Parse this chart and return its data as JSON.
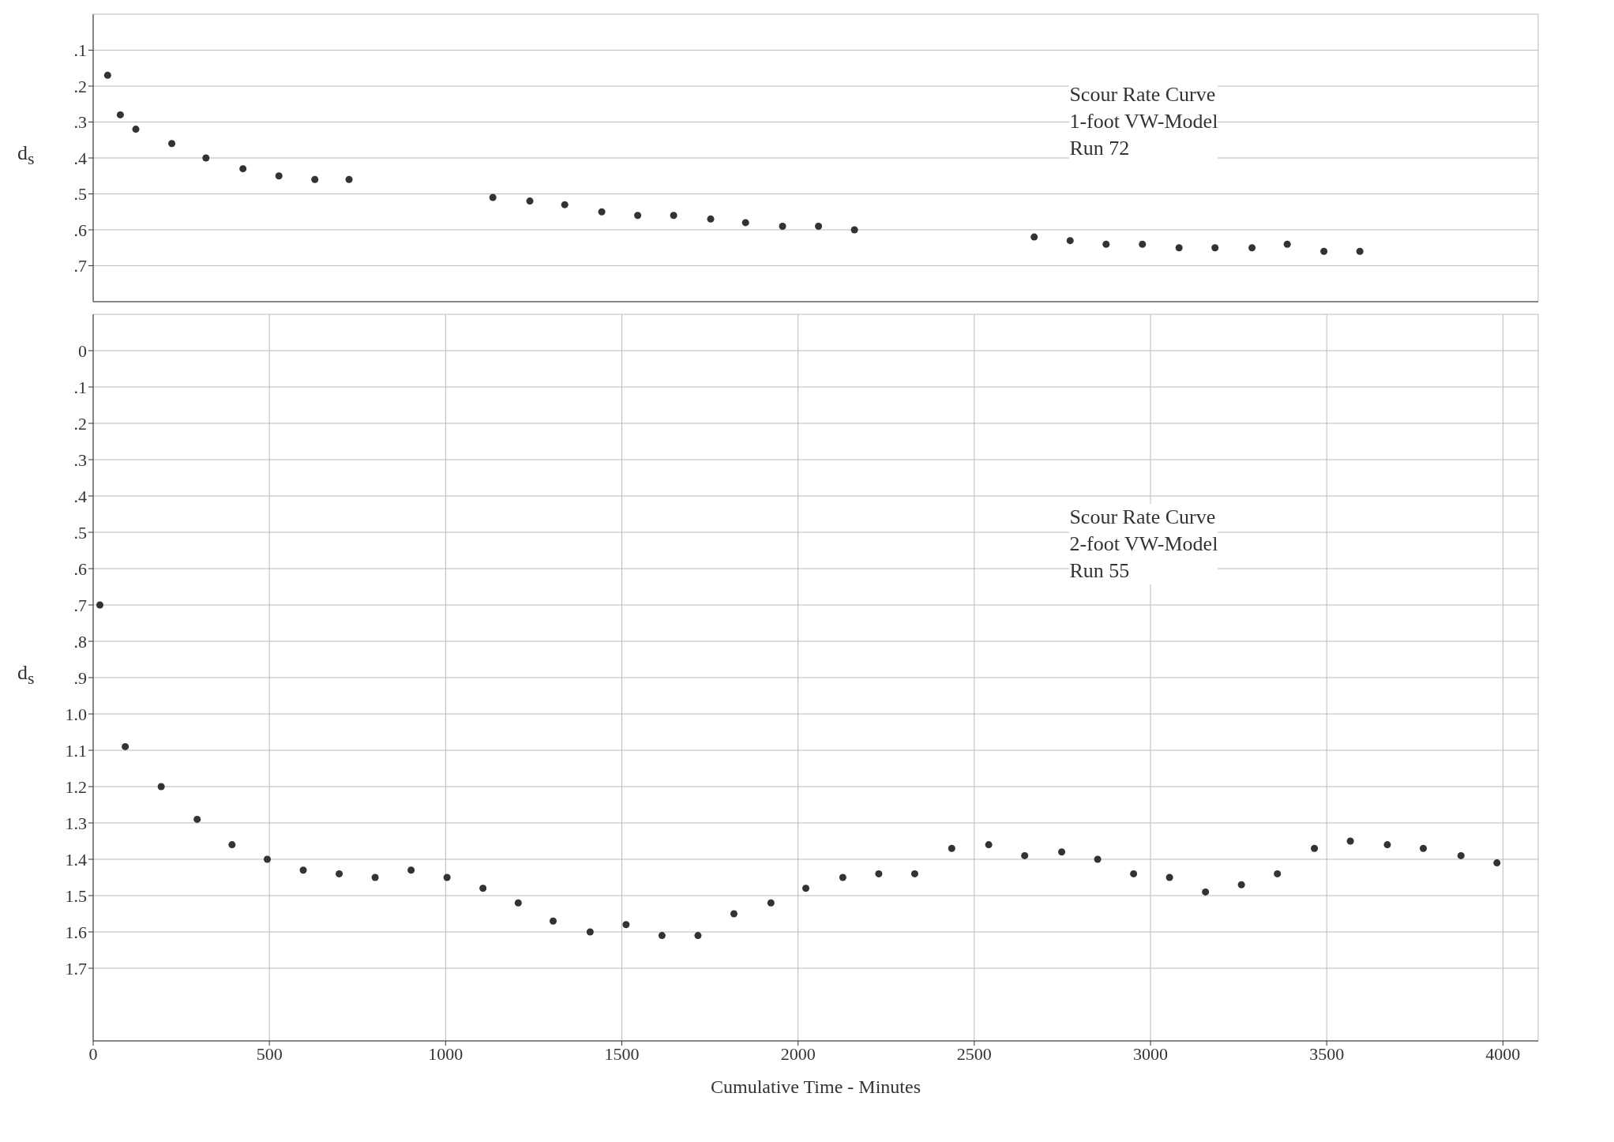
{
  "chart_data": [
    {
      "type": "scatter",
      "ylabel": "d$_{s}$",
      "annotations": [
        "Scour Rate Curve\n1-foot VW-Model\nRun 72"
      ],
      "series": [
        {
          "color": "#333333",
          "x": [
            41,
            77,
            121,
            223,
            320,
            425,
            527,
            629,
            726,
            1134,
            1239,
            1338,
            1443,
            1545,
            1647,
            1752,
            1851,
            1956,
            2058,
            2160,
            2670,
            2772,
            2874,
            2977,
            3081,
            3183,
            3288,
            3388,
            3492,
            3594
          ],
          "values": [
            0.17,
            0.28,
            0.32,
            0.36,
            0.4,
            0.43,
            0.45,
            0.46,
            0.46,
            0.51,
            0.52,
            0.53,
            0.55,
            0.56,
            0.56,
            0.57,
            0.58,
            0.59,
            0.59,
            0.6,
            0.62,
            0.63,
            0.64,
            0.64,
            0.65,
            0.65,
            0.65,
            0.64,
            0.66,
            0.66
          ]
        }
      ],
      "xlim": [
        0,
        4100
      ],
      "xticks": [
        0,
        500,
        1000,
        1500,
        2000,
        2500,
        3000,
        3500,
        4000
      ],
      "ylim": [
        0.8,
        0.0
      ],
      "yticks": [
        {
          "value": 0.1,
          "label": ".1"
        },
        {
          "value": 0.2,
          "label": ".2"
        },
        {
          "value": 0.3,
          "label": ".3"
        },
        {
          "value": 0.4,
          "label": ".4"
        },
        {
          "value": 0.5,
          "label": ".5"
        },
        {
          "value": 0.6,
          "label": ".6"
        },
        {
          "value": 0.7,
          "label": ".7"
        }
      ],
      "tick_labels": "y",
      "grid": true,
      "marker": "circle",
      "legend": false
    },
    {
      "type": "scatter",
      "ylabel": "d$_{s}$",
      "xlabel": "Cumulative Time - Minutes",
      "annotations": [
        "Scour Rate Curve\n2-foot VW-Model\nRun 55"
      ],
      "series": [
        {
          "color": "#333333",
          "x": [
            19,
            91,
            193,
            295,
            394,
            494,
            596,
            698,
            800,
            902,
            1004,
            1106,
            1206,
            1305,
            1410,
            1512,
            1614,
            1716,
            1818,
            1923,
            2022,
            2127,
            2229,
            2331,
            2436,
            2541,
            2643,
            2748,
            2850,
            2952,
            3054,
            3156,
            3258,
            3360,
            3465,
            3567,
            3672,
            3774,
            3881,
            3983
          ],
          "values": [
            0.7,
            1.09,
            1.2,
            1.29,
            1.36,
            1.4,
            1.43,
            1.44,
            1.45,
            1.43,
            1.45,
            1.48,
            1.52,
            1.57,
            1.6,
            1.58,
            1.61,
            1.61,
            1.55,
            1.52,
            1.48,
            1.45,
            1.44,
            1.44,
            1.37,
            1.36,
            1.39,
            1.38,
            1.4,
            1.44,
            1.45,
            1.49,
            1.47,
            1.44,
            1.37,
            1.35,
            1.36,
            1.37,
            1.39,
            1.41
          ]
        }
      ],
      "xlim": [
        0,
        4100
      ],
      "xticks": [
        0,
        500,
        1000,
        1500,
        2000,
        2500,
        3000,
        3500,
        4000
      ],
      "ylim": [
        1.9,
        -0.1
      ],
      "yticks": [
        0,
        {
          "value": 0.1,
          "label": ".1"
        },
        {
          "value": 0.2,
          "label": ".2"
        },
        {
          "value": 0.3,
          "label": ".3"
        },
        {
          "value": 0.4,
          "label": ".4"
        },
        {
          "value": 0.5,
          "label": ".5"
        },
        {
          "value": 0.6,
          "label": ".6"
        },
        {
          "value": 0.7,
          "label": ".7"
        },
        {
          "value": 0.8,
          "label": ".8"
        },
        {
          "value": 0.9,
          "label": ".9"
        },
        {
          "value": 1.0,
          "label": "1.0"
        },
        {
          "value": 1.1,
          "label": "1.1"
        },
        {
          "value": 1.2,
          "label": "1.2"
        },
        {
          "value": 1.3,
          "label": "1.3"
        },
        {
          "value": 1.4,
          "label": "1.4"
        },
        {
          "value": 1.5,
          "label": "1.5"
        },
        {
          "value": 1.6,
          "label": "1.6"
        },
        {
          "value": 1.7,
          "label": "1.7"
        }
      ],
      "grid": true,
      "marker": "circle",
      "legend": false
    }
  ]
}
